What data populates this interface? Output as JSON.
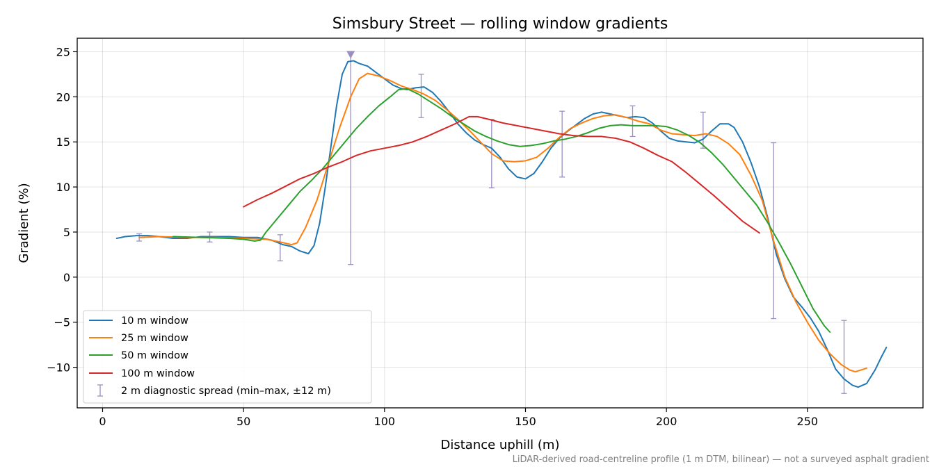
{
  "chart_data": {
    "type": "line",
    "title": "Simsbury Street — rolling window gradients",
    "xlabel": "Distance uphill (m)",
    "ylabel": "Gradient (%)",
    "xlim": [
      -9,
      291
    ],
    "ylim": [
      -14.5,
      26.5
    ],
    "xticks": [
      0,
      50,
      100,
      150,
      200,
      250
    ],
    "yticks": [
      -10,
      -5,
      0,
      5,
      10,
      15,
      20,
      25
    ],
    "xtick_labels": [
      "0",
      "50",
      "100",
      "150",
      "200",
      "250"
    ],
    "ytick_labels": [
      "−10",
      "−5",
      "0",
      "5",
      "10",
      "15",
      "20",
      "25"
    ],
    "grid": true,
    "legend_position": "lower-left",
    "footnote": "LiDAR-derived road-centreline profile (1 m DTM, bilinear) — not a surveyed asphalt gradient",
    "series": [
      {
        "name": "10 m window",
        "color": "#1f77b4",
        "points": [
          [
            5,
            4.3
          ],
          [
            8,
            4.5
          ],
          [
            12,
            4.6
          ],
          [
            16,
            4.6
          ],
          [
            20,
            4.5
          ],
          [
            25,
            4.3
          ],
          [
            30,
            4.3
          ],
          [
            35,
            4.5
          ],
          [
            40,
            4.5
          ],
          [
            45,
            4.5
          ],
          [
            50,
            4.4
          ],
          [
            55,
            4.4
          ],
          [
            60,
            4.1
          ],
          [
            64,
            3.6
          ],
          [
            67,
            3.4
          ],
          [
            70,
            2.9
          ],
          [
            73,
            2.6
          ],
          [
            75,
            3.5
          ],
          [
            77,
            6.0
          ],
          [
            79,
            10.0
          ],
          [
            81,
            14.5
          ],
          [
            83,
            19.0
          ],
          [
            85,
            22.5
          ],
          [
            87,
            23.9
          ],
          [
            89,
            24.0
          ],
          [
            91,
            23.7
          ],
          [
            94,
            23.4
          ],
          [
            97,
            22.7
          ],
          [
            100,
            22.0
          ],
          [
            103,
            21.3
          ],
          [
            106,
            20.9
          ],
          [
            108,
            20.8
          ],
          [
            111,
            21.0
          ],
          [
            114,
            21.1
          ],
          [
            117,
            20.5
          ],
          [
            120,
            19.5
          ],
          [
            123,
            18.3
          ],
          [
            126,
            17.0
          ],
          [
            129,
            16.0
          ],
          [
            132,
            15.2
          ],
          [
            135,
            14.7
          ],
          [
            138,
            14.3
          ],
          [
            141,
            13.3
          ],
          [
            144,
            12.0
          ],
          [
            147,
            11.1
          ],
          [
            150,
            10.9
          ],
          [
            153,
            11.5
          ],
          [
            156,
            12.8
          ],
          [
            159,
            14.3
          ],
          [
            162,
            15.4
          ],
          [
            165,
            16.2
          ],
          [
            168,
            16.9
          ],
          [
            171,
            17.6
          ],
          [
            174,
            18.1
          ],
          [
            177,
            18.3
          ],
          [
            180,
            18.1
          ],
          [
            183,
            17.9
          ],
          [
            186,
            17.7
          ],
          [
            189,
            17.8
          ],
          [
            192,
            17.7
          ],
          [
            195,
            17.1
          ],
          [
            198,
            16.2
          ],
          [
            201,
            15.4
          ],
          [
            204,
            15.1
          ],
          [
            207,
            15.0
          ],
          [
            210,
            14.9
          ],
          [
            213,
            15.3
          ],
          [
            216,
            16.2
          ],
          [
            219,
            17.0
          ],
          [
            222,
            17.0
          ],
          [
            224,
            16.6
          ],
          [
            227,
            15.0
          ],
          [
            230,
            12.7
          ],
          [
            233,
            10.0
          ],
          [
            236,
            6.5
          ],
          [
            239,
            2.5
          ],
          [
            242,
            -0.2
          ],
          [
            245,
            -2.2
          ],
          [
            248,
            -3.3
          ],
          [
            251,
            -4.5
          ],
          [
            254,
            -6.0
          ],
          [
            257,
            -8.0
          ],
          [
            260,
            -10.2
          ],
          [
            263,
            -11.3
          ],
          [
            266,
            -12.0
          ],
          [
            268,
            -12.2
          ],
          [
            271,
            -11.8
          ],
          [
            274,
            -10.3
          ],
          [
            276,
            -9.0
          ],
          [
            278,
            -7.8
          ]
        ]
      },
      {
        "name": "25 m window",
        "color": "#ff7f0e",
        "points": [
          [
            13,
            4.4
          ],
          [
            20,
            4.5
          ],
          [
            30,
            4.4
          ],
          [
            40,
            4.4
          ],
          [
            50,
            4.3
          ],
          [
            58,
            4.2
          ],
          [
            63,
            3.9
          ],
          [
            67,
            3.6
          ],
          [
            69,
            3.8
          ],
          [
            72,
            5.5
          ],
          [
            76,
            8.5
          ],
          [
            80,
            12.5
          ],
          [
            84,
            16.5
          ],
          [
            88,
            20.0
          ],
          [
            91,
            22.0
          ],
          [
            94,
            22.6
          ],
          [
            98,
            22.3
          ],
          [
            102,
            21.8
          ],
          [
            106,
            21.2
          ],
          [
            110,
            20.8
          ],
          [
            114,
            20.3
          ],
          [
            118,
            19.6
          ],
          [
            122,
            18.6
          ],
          [
            126,
            17.5
          ],
          [
            130,
            16.3
          ],
          [
            134,
            15.0
          ],
          [
            138,
            13.7
          ],
          [
            142,
            12.9
          ],
          [
            146,
            12.8
          ],
          [
            150,
            12.9
          ],
          [
            154,
            13.3
          ],
          [
            158,
            14.3
          ],
          [
            162,
            15.5
          ],
          [
            166,
            16.5
          ],
          [
            170,
            17.1
          ],
          [
            174,
            17.6
          ],
          [
            178,
            17.9
          ],
          [
            182,
            18.0
          ],
          [
            186,
            17.7
          ],
          [
            190,
            17.3
          ],
          [
            194,
            17.0
          ],
          [
            198,
            16.3
          ],
          [
            202,
            15.9
          ],
          [
            206,
            15.8
          ],
          [
            210,
            15.7
          ],
          [
            214,
            15.9
          ],
          [
            218,
            15.6
          ],
          [
            222,
            14.8
          ],
          [
            226,
            13.6
          ],
          [
            230,
            11.3
          ],
          [
            234,
            8.5
          ],
          [
            238,
            4.0
          ],
          [
            242,
            0.0
          ],
          [
            246,
            -2.8
          ],
          [
            250,
            -5.0
          ],
          [
            254,
            -7.0
          ],
          [
            258,
            -8.5
          ],
          [
            262,
            -9.7
          ],
          [
            265,
            -10.3
          ],
          [
            267,
            -10.5
          ],
          [
            270,
            -10.2
          ],
          [
            271,
            -10.1
          ]
        ]
      },
      {
        "name": "50 m window",
        "color": "#2ca02c",
        "points": [
          [
            25,
            4.5
          ],
          [
            35,
            4.4
          ],
          [
            45,
            4.3
          ],
          [
            50,
            4.2
          ],
          [
            54,
            4.0
          ],
          [
            56,
            4.1
          ],
          [
            58,
            5.0
          ],
          [
            62,
            6.5
          ],
          [
            66,
            8.0
          ],
          [
            70,
            9.5
          ],
          [
            74,
            10.7
          ],
          [
            78,
            12.0
          ],
          [
            82,
            13.5
          ],
          [
            86,
            15.0
          ],
          [
            90,
            16.5
          ],
          [
            94,
            17.8
          ],
          [
            98,
            19.0
          ],
          [
            102,
            20.0
          ],
          [
            105,
            20.8
          ],
          [
            108,
            20.9
          ],
          [
            112,
            20.3
          ],
          [
            116,
            19.5
          ],
          [
            120,
            18.7
          ],
          [
            124,
            17.8
          ],
          [
            128,
            17.0
          ],
          [
            132,
            16.2
          ],
          [
            136,
            15.6
          ],
          [
            140,
            15.1
          ],
          [
            144,
            14.7
          ],
          [
            148,
            14.5
          ],
          [
            152,
            14.6
          ],
          [
            156,
            14.8
          ],
          [
            160,
            15.1
          ],
          [
            164,
            15.3
          ],
          [
            168,
            15.6
          ],
          [
            172,
            16.0
          ],
          [
            176,
            16.5
          ],
          [
            180,
            16.8
          ],
          [
            184,
            16.9
          ],
          [
            188,
            16.8
          ],
          [
            192,
            16.8
          ],
          [
            196,
            16.8
          ],
          [
            200,
            16.7
          ],
          [
            204,
            16.3
          ],
          [
            208,
            15.7
          ],
          [
            212,
            14.9
          ],
          [
            216,
            13.8
          ],
          [
            220,
            12.5
          ],
          [
            224,
            11.0
          ],
          [
            228,
            9.5
          ],
          [
            232,
            8.0
          ],
          [
            236,
            6.0
          ],
          [
            240,
            3.8
          ],
          [
            244,
            1.5
          ],
          [
            248,
            -1.0
          ],
          [
            252,
            -3.5
          ],
          [
            256,
            -5.4
          ],
          [
            258,
            -6.1
          ]
        ]
      },
      {
        "name": "100 m window",
        "color": "#d62728",
        "points": [
          [
            50,
            7.8
          ],
          [
            55,
            8.6
          ],
          [
            60,
            9.3
          ],
          [
            65,
            10.1
          ],
          [
            70,
            10.9
          ],
          [
            75,
            11.5
          ],
          [
            80,
            12.2
          ],
          [
            85,
            12.8
          ],
          [
            90,
            13.5
          ],
          [
            95,
            14.0
          ],
          [
            100,
            14.3
          ],
          [
            105,
            14.6
          ],
          [
            110,
            15.0
          ],
          [
            115,
            15.6
          ],
          [
            120,
            16.3
          ],
          [
            125,
            17.0
          ],
          [
            130,
            17.8
          ],
          [
            133,
            17.8
          ],
          [
            137,
            17.5
          ],
          [
            142,
            17.1
          ],
          [
            147,
            16.8
          ],
          [
            152,
            16.5
          ],
          [
            157,
            16.2
          ],
          [
            162,
            15.9
          ],
          [
            167,
            15.7
          ],
          [
            172,
            15.6
          ],
          [
            177,
            15.6
          ],
          [
            182,
            15.4
          ],
          [
            187,
            15.0
          ],
          [
            192,
            14.3
          ],
          [
            197,
            13.5
          ],
          [
            202,
            12.8
          ],
          [
            207,
            11.6
          ],
          [
            212,
            10.3
          ],
          [
            217,
            9.0
          ],
          [
            222,
            7.6
          ],
          [
            227,
            6.2
          ],
          [
            233,
            4.9
          ]
        ]
      },
      {
        "name": "2 m diagnostic spread (min–max, ±12 m)",
        "color": "#9c8fbf",
        "errorbars": [
          [
            13,
            4.0,
            4.8
          ],
          [
            38,
            3.9,
            5.0
          ],
          [
            63,
            1.8,
            4.7
          ],
          [
            88,
            1.4,
            25.0
          ],
          [
            113,
            17.7,
            22.5
          ],
          [
            138,
            9.9,
            17.5
          ],
          [
            163,
            11.1,
            18.4
          ],
          [
            188,
            15.6,
            19.0
          ],
          [
            213,
            14.3,
            18.3
          ],
          [
            238,
            -4.6,
            14.9
          ],
          [
            263,
            -12.9,
            -4.8
          ]
        ],
        "peak_marker": [
          88,
          24.7
        ]
      }
    ]
  }
}
